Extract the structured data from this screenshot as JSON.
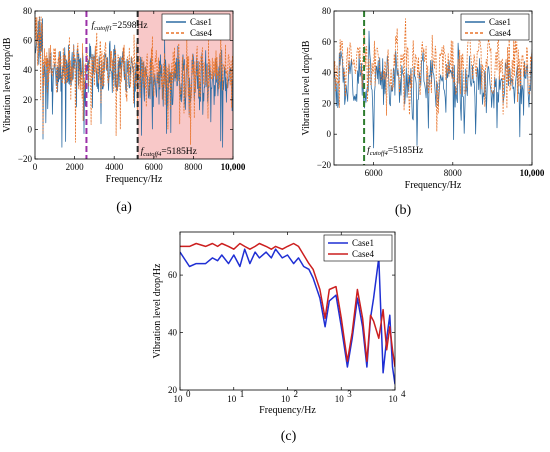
{
  "colors": {
    "case1_ab": "#2e6da4",
    "case4_ab": "#e8732a",
    "case1_c": "#1f2fd4",
    "case4_c": "#cc1f1f",
    "shade": "#f6b6b6",
    "cutoff1_line": "#9b2fa8",
    "cutoff4_line": "#2e7d2e",
    "cutoff4_line_a": "#2a2a2a"
  },
  "chart_data": [
    {
      "id": "a",
      "panel_label": "(a)",
      "type": "line",
      "xlabel": "Frequency/Hz",
      "ylabel": "Vibration level drop/dB",
      "xlim": [
        0,
        10000
      ],
      "ylim": [
        -20,
        80
      ],
      "xticks": [
        0,
        2000,
        4000,
        6000,
        8000,
        10000
      ],
      "xtick_labels": [
        "0",
        "2000",
        "4000",
        "6000",
        "8000",
        "10,000"
      ],
      "yticks": [
        -20,
        0,
        20,
        40,
        60,
        80
      ],
      "ytick_labels": [
        "−20",
        "0",
        "20",
        "40",
        "60",
        "80"
      ],
      "legend_position": "top-right",
      "series": [
        {
          "name": "Case1",
          "style": "solid"
        },
        {
          "name": "Case4",
          "style": "dashed"
        }
      ],
      "shaded_region": [
        5185,
        10000
      ],
      "annotations": [
        {
          "sub": "cutoff1",
          "value": "=2598Hz",
          "x": 2598
        },
        {
          "sub": "cutoff4",
          "value": "=5185Hz",
          "x": 5185
        }
      ]
    },
    {
      "id": "b",
      "panel_label": "(b)",
      "type": "line",
      "xlabel": "Frequency/Hz",
      "ylabel": "Vibration level drop/dB",
      "xlim": [
        5000,
        10000
      ],
      "ylim": [
        -20,
        80
      ],
      "xticks": [
        6000,
        8000,
        10000
      ],
      "xtick_labels": [
        "6000",
        "8000",
        "10,000"
      ],
      "yticks": [
        -20,
        0,
        20,
        40,
        60,
        80
      ],
      "ytick_labels": [
        "−20",
        "0",
        "20",
        "40",
        "60",
        "80"
      ],
      "legend_position": "top-right",
      "series": [
        {
          "name": "Case1",
          "style": "solid"
        },
        {
          "name": "Case4",
          "style": "dashed"
        }
      ],
      "annotations": [
        {
          "sub": "cutoff4",
          "value": "=5185Hz",
          "x": 5760
        }
      ]
    },
    {
      "id": "c",
      "panel_label": "(c)",
      "type": "line",
      "xscale": "log",
      "xlabel": "Frequency/Hz",
      "ylabel": "Vibration level drop/Hz",
      "xlim": [
        1,
        10000
      ],
      "ylim": [
        20,
        75
      ],
      "xticks": [
        1,
        10,
        100,
        1000,
        10000
      ],
      "xtick_bases": [
        "10",
        "10",
        "10",
        "10",
        "10"
      ],
      "xtick_exps": [
        "0",
        "1",
        "2",
        "3",
        "4"
      ],
      "yticks": [
        20,
        40,
        60
      ],
      "ytick_labels": [
        "20",
        "40",
        "60"
      ],
      "legend_position": "top-right",
      "series": [
        {
          "name": "Case1",
          "x": [
            1,
            1.5,
            2,
            3,
            4,
            5,
            6,
            8,
            10,
            13,
            16,
            20,
            25,
            30,
            40,
            50,
            60,
            80,
            100,
            130,
            160,
            200,
            250,
            300,
            400,
            500,
            600,
            800,
            1000,
            1300,
            1600,
            2000,
            2500,
            3000,
            3500,
            4000,
            5000,
            6000,
            7000,
            8000,
            9000,
            10000
          ],
          "y": [
            68,
            63,
            64,
            64,
            66,
            65,
            67,
            64,
            67,
            63,
            69,
            64,
            68,
            66,
            68,
            66,
            69,
            66,
            67,
            64,
            66,
            63,
            62,
            59,
            52,
            42,
            51,
            53,
            42,
            28,
            38,
            52,
            42,
            28,
            45,
            52,
            66,
            26,
            38,
            46,
            28,
            22
          ]
        },
        {
          "name": "Case4",
          "x": [
            1,
            1.5,
            2,
            3,
            4,
            5,
            6,
            8,
            10,
            13,
            16,
            20,
            25,
            30,
            40,
            50,
            60,
            80,
            100,
            130,
            160,
            200,
            250,
            300,
            400,
            500,
            600,
            800,
            1000,
            1300,
            1600,
            2000,
            2500,
            3000,
            3500,
            4000,
            5000,
            6000,
            7000,
            8000,
            9000,
            10000
          ],
          "y": [
            70,
            70,
            71,
            70,
            71,
            70,
            71,
            70,
            69,
            71,
            70,
            69,
            70,
            71,
            70,
            69,
            70,
            69,
            70,
            71,
            70,
            67,
            64,
            62,
            55,
            45,
            55,
            56,
            45,
            30,
            40,
            55,
            45,
            30,
            46,
            44,
            38,
            48,
            34,
            42,
            34,
            28
          ]
        }
      ]
    }
  ]
}
